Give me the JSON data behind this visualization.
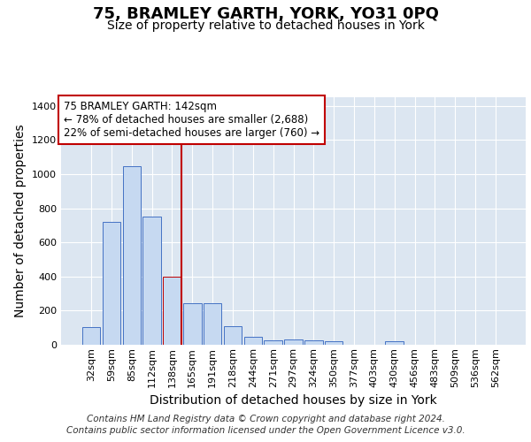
{
  "title": "75, BRAMLEY GARTH, YORK, YO31 0PQ",
  "subtitle": "Size of property relative to detached houses in York",
  "xlabel": "Distribution of detached houses by size in York",
  "ylabel": "Number of detached properties",
  "categories": [
    "32sqm",
    "59sqm",
    "85sqm",
    "112sqm",
    "138sqm",
    "165sqm",
    "191sqm",
    "218sqm",
    "244sqm",
    "271sqm",
    "297sqm",
    "324sqm",
    "350sqm",
    "377sqm",
    "403sqm",
    "430sqm",
    "456sqm",
    "483sqm",
    "509sqm",
    "536sqm",
    "562sqm"
  ],
  "values": [
    105,
    718,
    1048,
    750,
    400,
    242,
    242,
    110,
    48,
    27,
    30,
    27,
    20,
    0,
    0,
    20,
    0,
    0,
    0,
    0,
    0
  ],
  "bar_color": "#c6d9f1",
  "bar_edge_color": "#4472c4",
  "highlight_bar_index": 4,
  "vline_color": "#c00000",
  "annotation_text": "75 BRAMLEY GARTH: 142sqm\n← 78% of detached houses are smaller (2,688)\n22% of semi-detached houses are larger (760) →",
  "annotation_box_facecolor": "#ffffff",
  "annotation_box_edgecolor": "#c00000",
  "ylim": [
    0,
    1450
  ],
  "yticks": [
    0,
    200,
    400,
    600,
    800,
    1000,
    1200,
    1400
  ],
  "footer_text": "Contains HM Land Registry data © Crown copyright and database right 2024.\nContains public sector information licensed under the Open Government Licence v3.0.",
  "plot_bg_color": "#dce6f1",
  "title_fontsize": 13,
  "subtitle_fontsize": 10,
  "axis_label_fontsize": 10,
  "tick_fontsize": 8,
  "footer_fontsize": 7.5
}
